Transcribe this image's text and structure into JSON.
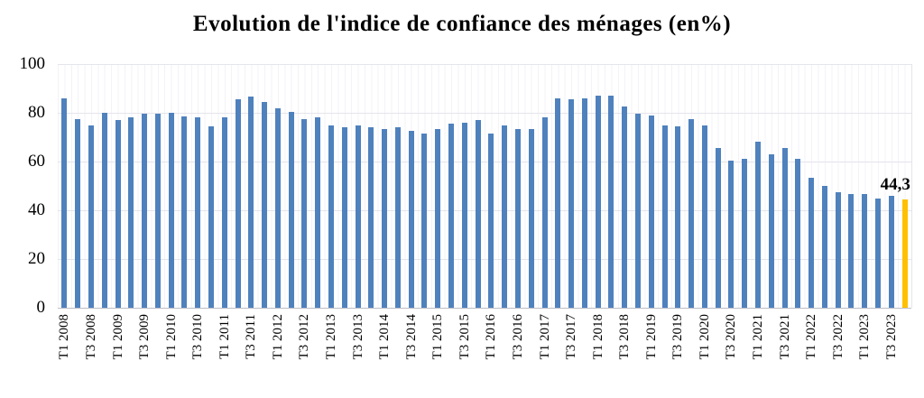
{
  "chart_data": {
    "type": "bar",
    "title": "Evolution de l'indice de confiance des ménages (en%)",
    "xlabel": "",
    "ylabel": "",
    "ylim": [
      0,
      100
    ],
    "y_ticks": [
      0,
      20,
      40,
      60,
      80,
      100
    ],
    "grid": true,
    "x_tick_step": 2,
    "categories": [
      "T1 2008",
      "T2 2008",
      "T3 2008",
      "T4 2008",
      "T1 2009",
      "T2 2009",
      "T3 2009",
      "T4 2009",
      "T1 2010",
      "T2 2010",
      "T3 2010",
      "T4 2010",
      "T1 2011",
      "T2 2011",
      "T3 2011",
      "T4 2011",
      "T1 2012",
      "T2 2012",
      "T3 2012",
      "T4 2012",
      "T1 2013",
      "T2 2013",
      "T3 2013",
      "T4 2013",
      "T1 2014",
      "T2 2014",
      "T3 2014",
      "T4 2014",
      "T1 2015",
      "T2 2015",
      "T3 2015",
      "T4 2015",
      "T1 2016",
      "T2 2016",
      "T3 2016",
      "T4 2016",
      "T1 2017",
      "T2 2017",
      "T3 2017",
      "T4 2017",
      "T1 2018",
      "T2 2018",
      "T3 2018",
      "T4 2018",
      "T1 2019",
      "T2 2019",
      "T3 2019",
      "T4 2019",
      "T1 2020",
      "T2 2020",
      "T3 2020",
      "T4 2020",
      "T1 2021",
      "T2 2021",
      "T3 2021",
      "T4 2021",
      "T1 2022",
      "T2 2022",
      "T3 2022",
      "T4 2022",
      "T1 2023",
      "T2 2023",
      "T3 2023",
      "T4 2023"
    ],
    "values": [
      86,
      77.5,
      75,
      80,
      77,
      78,
      79.5,
      79.5,
      80,
      78.5,
      78,
      74.5,
      78,
      85.5,
      86.5,
      84.5,
      82,
      80.5,
      77.5,
      78,
      75,
      74,
      75,
      74,
      73.5,
      74,
      72.5,
      71.5,
      73.5,
      75.5,
      76,
      77,
      71.5,
      75,
      73.5,
      73.5,
      78,
      86,
      85.5,
      86,
      87,
      87,
      82.5,
      79.5,
      79,
      75,
      74.5,
      77.5,
      75,
      65.5,
      60.5,
      61,
      68,
      63,
      65.5,
      61,
      53.5,
      50,
      47.5,
      46.5,
      46.5,
      45,
      46,
      44.3
    ],
    "highlight_index": 63,
    "highlight_label": "44,3",
    "colors": {
      "bar": "#4F81BD",
      "highlight": "#FFC000",
      "gridline": "#E4E4EC",
      "axis_line": "#BDBDC6",
      "stripe": "#F3F3F8"
    }
  }
}
